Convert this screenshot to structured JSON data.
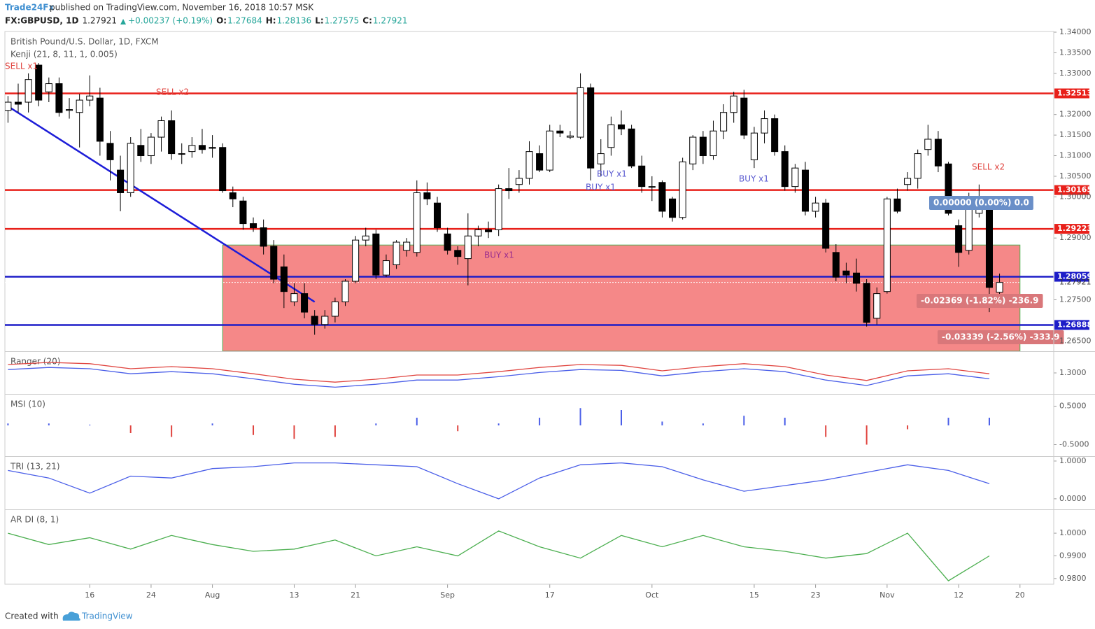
{
  "header": {
    "author": "Trade24Fx",
    "published": "published on TradingView.com, November 16, 2018 10:57 MSK"
  },
  "quote": {
    "symbol": "FX:GBPUSD, 1D",
    "last": "1.27921",
    "change": "+0.00237 (+0.19%)",
    "open_label": "O:",
    "open": "1.27684",
    "high_label": "H:",
    "high": "1.28136",
    "low_label": "L:",
    "low": "1.27575",
    "close_label": "C:",
    "close": "1.27921"
  },
  "footer": {
    "created": "Created with",
    "brand": "TradingView"
  },
  "chart_data": {
    "type": "candlestick",
    "title": "British Pound/U.S. Dollar, 1D, FXCM",
    "subtitle": "Kenji (21, 8, 11, 1, 0.005)",
    "up_color": "#ffffff",
    "down_color": "#000000",
    "ohlc": [
      [
        1.321,
        1.3245,
        1.318,
        1.323
      ],
      [
        1.323,
        1.3275,
        1.3205,
        1.3225
      ],
      [
        1.323,
        1.33,
        1.3205,
        1.3285
      ],
      [
        1.332,
        1.3325,
        1.322,
        1.3235
      ],
      [
        1.3255,
        1.329,
        1.323,
        1.3275
      ],
      [
        1.3275,
        1.329,
        1.3195,
        1.3205
      ],
      [
        1.321,
        1.324,
        1.319,
        1.3212
      ],
      [
        1.3205,
        1.325,
        1.312,
        1.3235
      ],
      [
        1.3235,
        1.3295,
        1.322,
        1.3245
      ],
      [
        1.324,
        1.3265,
        1.31,
        1.3135
      ],
      [
        1.313,
        1.316,
        1.304,
        1.309
      ],
      [
        1.3065,
        1.31,
        1.2965,
        1.301
      ],
      [
        1.301,
        1.3145,
        1.3,
        1.313
      ],
      [
        1.3125,
        1.3165,
        1.3085,
        1.31
      ],
      [
        1.31,
        1.3155,
        1.308,
        1.3145
      ],
      [
        1.3145,
        1.3195,
        1.311,
        1.3185
      ],
      [
        1.3185,
        1.321,
        1.309,
        1.3105
      ],
      [
        1.3105,
        1.313,
        1.308,
        1.3105
      ],
      [
        1.311,
        1.3145,
        1.3095,
        1.3125
      ],
      [
        1.3125,
        1.3165,
        1.3105,
        1.3115
      ],
      [
        1.312,
        1.315,
        1.3095,
        1.3118
      ],
      [
        1.312,
        1.313,
        1.301,
        1.3015
      ],
      [
        1.301,
        1.3025,
        1.2975,
        1.2995
      ],
      [
        1.299,
        1.3,
        1.292,
        1.2935
      ],
      [
        1.2935,
        1.295,
        1.2915,
        1.2925
      ],
      [
        1.2925,
        1.2945,
        1.286,
        1.288
      ],
      [
        1.288,
        1.2895,
        1.279,
        1.28
      ],
      [
        1.283,
        1.286,
        1.273,
        1.277
      ],
      [
        1.2745,
        1.279,
        1.2735,
        1.2765
      ],
      [
        1.2765,
        1.279,
        1.2705,
        1.272
      ],
      [
        1.271,
        1.2725,
        1.2665,
        1.269
      ],
      [
        1.269,
        1.2725,
        1.268,
        1.271
      ],
      [
        1.271,
        1.2755,
        1.2695,
        1.2745
      ],
      [
        1.2745,
        1.28,
        1.2735,
        1.2795
      ],
      [
        1.2795,
        1.2905,
        1.279,
        1.2895
      ],
      [
        1.2895,
        1.2925,
        1.288,
        1.2905
      ],
      [
        1.291,
        1.292,
        1.28,
        1.281
      ],
      [
        1.281,
        1.286,
        1.2805,
        1.2845
      ],
      [
        1.2835,
        1.2895,
        1.2825,
        1.289
      ],
      [
        1.287,
        1.29,
        1.2855,
        1.289
      ],
      [
        1.2865,
        1.304,
        1.2855,
        1.301
      ],
      [
        1.301,
        1.3035,
        1.298,
        1.2995
      ],
      [
        1.2985,
        1.3,
        1.2915,
        1.2925
      ],
      [
        1.291,
        1.2925,
        1.286,
        1.287
      ],
      [
        1.287,
        1.288,
        1.2835,
        1.2855
      ],
      [
        1.285,
        1.296,
        1.2785,
        1.2905
      ],
      [
        1.2905,
        1.293,
        1.288,
        1.292
      ],
      [
        1.292,
        1.294,
        1.29,
        1.2915
      ],
      [
        1.292,
        1.303,
        1.2905,
        1.302
      ],
      [
        1.302,
        1.307,
        1.2995,
        1.3015
      ],
      [
        1.303,
        1.3065,
        1.301,
        1.3045
      ],
      [
        1.3045,
        1.3135,
        1.303,
        1.311
      ],
      [
        1.3105,
        1.3125,
        1.306,
        1.3065
      ],
      [
        1.3065,
        1.3175,
        1.306,
        1.316
      ],
      [
        1.316,
        1.3175,
        1.3145,
        1.3155
      ],
      [
        1.3145,
        1.316,
        1.314,
        1.3148
      ],
      [
        1.3145,
        1.33,
        1.314,
        1.3265
      ],
      [
        1.3265,
        1.3275,
        1.304,
        1.307
      ],
      [
        1.308,
        1.314,
        1.305,
        1.3105
      ],
      [
        1.312,
        1.3195,
        1.31,
        1.3175
      ],
      [
        1.3175,
        1.321,
        1.315,
        1.3165
      ],
      [
        1.3165,
        1.3175,
        1.307,
        1.3075
      ],
      [
        1.3075,
        1.31,
        1.301,
        1.3025
      ],
      [
        1.3025,
        1.305,
        1.299,
        1.3025
      ],
      [
        1.3035,
        1.304,
        1.295,
        1.2965
      ],
      [
        1.2995,
        1.3,
        1.294,
        1.295
      ],
      [
        1.295,
        1.3095,
        1.2945,
        1.3085
      ],
      [
        1.308,
        1.315,
        1.3065,
        1.3145
      ],
      [
        1.3145,
        1.316,
        1.308,
        1.31
      ],
      [
        1.31,
        1.3185,
        1.309,
        1.316
      ],
      [
        1.316,
        1.3225,
        1.314,
        1.3205
      ],
      [
        1.3205,
        1.3255,
        1.318,
        1.3245
      ],
      [
        1.324,
        1.326,
        1.314,
        1.315
      ],
      [
        1.309,
        1.317,
        1.307,
        1.3155
      ],
      [
        1.3155,
        1.321,
        1.313,
        1.319
      ],
      [
        1.319,
        1.32,
        1.31,
        1.311
      ],
      [
        1.311,
        1.3125,
        1.3015,
        1.3025
      ],
      [
        1.3025,
        1.308,
        1.301,
        1.307
      ],
      [
        1.3065,
        1.3085,
        1.2955,
        1.2965
      ],
      [
        1.2965,
        1.3,
        1.295,
        1.2985
      ],
      [
        1.2985,
        1.2995,
        1.2865,
        1.2875
      ],
      [
        1.2865,
        1.2885,
        1.2795,
        1.2805
      ],
      [
        1.282,
        1.284,
        1.279,
        1.281
      ],
      [
        1.2815,
        1.285,
        1.277,
        1.279
      ],
      [
        1.279,
        1.28,
        1.2685,
        1.2695
      ],
      [
        1.2705,
        1.278,
        1.269,
        1.2765
      ],
      [
        1.277,
        1.3,
        1.2765,
        1.2995
      ],
      [
        1.2995,
        1.302,
        1.296,
        1.2965
      ],
      [
        1.303,
        1.306,
        1.3015,
        1.3045
      ],
      [
        1.3045,
        1.3115,
        1.302,
        1.3105
      ],
      [
        1.3115,
        1.3175,
        1.31,
        1.314
      ],
      [
        1.314,
        1.316,
        1.306,
        1.3075
      ],
      [
        1.308,
        1.3085,
        1.2955,
        1.296
      ],
      [
        1.293,
        1.2945,
        1.283,
        1.2865
      ],
      [
        1.287,
        1.301,
        1.286,
        1.2985
      ],
      [
        1.296,
        1.303,
        1.295,
        1.298
      ],
      [
        1.2985,
        1.3,
        1.272,
        1.278
      ],
      [
        1.27684,
        1.28136,
        1.27575,
        1.27921
      ]
    ],
    "xlim": [
      -0.3,
      102.3
    ],
    "xticks": [
      {
        "value": 8,
        "label": "16"
      },
      {
        "value": 14,
        "label": "24"
      },
      {
        "value": 20,
        "label": "Aug"
      },
      {
        "value": 28,
        "label": "13"
      },
      {
        "value": 34,
        "label": "21"
      },
      {
        "value": 43,
        "label": "Sep"
      },
      {
        "value": 53,
        "label": "17"
      },
      {
        "value": 63,
        "label": "Oct"
      },
      {
        "value": 73,
        "label": "15"
      },
      {
        "value": 79,
        "label": "23"
      },
      {
        "value": 86,
        "label": "Nov"
      },
      {
        "value": 93,
        "label": "12"
      },
      {
        "value": 99,
        "label": "20"
      }
    ],
    "ylim": [
      1.2625,
      1.34
    ],
    "yticks": [
      {
        "value": 1.34,
        "label": "1.34000"
      },
      {
        "value": 1.335,
        "label": "1.33500"
      },
      {
        "value": 1.33,
        "label": "1.33000"
      },
      {
        "value": 1.32,
        "label": "1.32000"
      },
      {
        "value": 1.315,
        "label": "1.31500"
      },
      {
        "value": 1.31,
        "label": "1.31000"
      },
      {
        "value": 1.305,
        "label": "1.30500"
      },
      {
        "value": 1.3,
        "label": "1.30000"
      },
      {
        "value": 1.29,
        "label": "1.29000"
      },
      {
        "value": 1.275,
        "label": "1.27500"
      },
      {
        "value": 1.265,
        "label": "1.26500"
      }
    ],
    "grid": false,
    "levels": [
      {
        "value": 1.32513,
        "color": "#e8201a"
      },
      {
        "value": 1.30165,
        "color": "#e8201a"
      },
      {
        "value": 1.29223,
        "color": "#e8201a"
      },
      {
        "value": 1.28059,
        "color": "#1d1dc8"
      },
      {
        "value": 1.26888,
        "color": "#1d1dc8"
      }
    ],
    "last_price": 1.27921,
    "zone": {
      "x": [
        21,
        99
      ],
      "y": [
        1.2883,
        1.2625
      ],
      "color": "#f26060"
    },
    "trendline": {
      "x": [
        0,
        30
      ],
      "y": [
        1.322,
        1.2745
      ],
      "color": "#1d1dd8"
    },
    "annotations": [
      {
        "text": "SELL x1",
        "color": "#e0443f"
      },
      {
        "text": "SELL x2",
        "color": "#e0443f"
      },
      {
        "text": "BUY x1",
        "color": "#5a5ad0"
      },
      {
        "text": "BUY x1",
        "color": "#5a5ad0"
      },
      {
        "text": "BUY x1",
        "color": "#5a5ad0"
      },
      {
        "text": "BUY x1",
        "color": "#9c2f8e"
      },
      {
        "text": "SELL x2",
        "color": "#e0443f"
      }
    ],
    "boxes": [
      {
        "text": "0.00000 (0.00%) 0.0",
        "color": "#6a8fc8"
      },
      {
        "text": "-0.02369 (-1.82%) -236.9",
        "color": "#d9777a"
      },
      {
        "text": "-0.03339 (-2.56%) -333.9",
        "color": "#d9777a"
      }
    ],
    "panes": [
      {
        "title": "Ranger (20)",
        "kind": "line",
        "ylim": [
          1.25,
          1.35
        ],
        "yticks": [
          {
            "value": 1.3,
            "label": "1.3000"
          }
        ],
        "x": [
          0,
          4,
          8,
          12,
          16,
          20,
          24,
          28,
          32,
          36,
          40,
          44,
          48,
          52,
          56,
          60,
          64,
          68,
          72,
          76,
          80,
          84,
          88,
          92,
          96
        ],
        "series": [
          {
            "color": "#e0443f",
            "values": [
              1.32,
              1.325,
              1.322,
              1.31,
              1.315,
              1.31,
              1.298,
              1.285,
              1.278,
              1.285,
              1.295,
              1.295,
              1.303,
              1.313,
              1.32,
              1.318,
              1.305,
              1.315,
              1.322,
              1.315,
              1.295,
              1.282,
              1.305,
              1.31,
              1.298
            ]
          },
          {
            "color": "#4a5ee8",
            "values": [
              1.308,
              1.313,
              1.31,
              1.298,
              1.303,
              1.298,
              1.286,
              1.273,
              1.266,
              1.273,
              1.283,
              1.283,
              1.291,
              1.301,
              1.308,
              1.306,
              1.293,
              1.303,
              1.31,
              1.303,
              1.283,
              1.27,
              1.293,
              1.298,
              1.286
            ]
          }
        ]
      },
      {
        "title": "MSI (10)",
        "kind": "bars",
        "ylim": [
          -0.8,
          0.8
        ],
        "yticks": [
          {
            "value": 0.5,
            "label": "0.5000"
          },
          {
            "value": -0.5,
            "label": "-0.5000"
          }
        ],
        "pos_color": "#4a5ee8",
        "neg_color": "#e0443f",
        "x": [
          0,
          4,
          8,
          12,
          16,
          20,
          24,
          28,
          32,
          36,
          40,
          44,
          48,
          52,
          56,
          60,
          64,
          68,
          72,
          76,
          80,
          84,
          88,
          92,
          96
        ],
        "values": [
          0.05,
          0.05,
          0.02,
          -0.2,
          -0.3,
          0.05,
          -0.25,
          -0.35,
          -0.3,
          0.05,
          0.2,
          -0.15,
          0.05,
          0.2,
          0.45,
          0.4,
          0.1,
          0.05,
          0.25,
          0.2,
          -0.3,
          -0.5,
          -0.1,
          0.2,
          0.2
        ]
      },
      {
        "title": "TRI (13, 21)",
        "kind": "line",
        "ylim": [
          -0.28,
          1.11
        ],
        "yticks": [
          {
            "value": 1,
            "label": "1.0000"
          },
          {
            "value": 0,
            "label": "0.0000"
          }
        ],
        "x": [
          0,
          4,
          8,
          12,
          16,
          20,
          24,
          28,
          32,
          36,
          40,
          44,
          48,
          52,
          56,
          60,
          64,
          68,
          72,
          76,
          80,
          84,
          88,
          92,
          96
        ],
        "series": [
          {
            "color": "#4a5ee8",
            "values": [
              0.75,
              0.55,
              0.15,
              0.6,
              0.55,
              0.8,
              0.85,
              0.95,
              0.95,
              0.9,
              0.85,
              0.4,
              0.0,
              0.55,
              0.9,
              0.95,
              0.85,
              0.5,
              0.2,
              0.35,
              0.5,
              0.7,
              0.9,
              0.75,
              0.4
            ]
          }
        ]
      },
      {
        "title": "AR DI (8, 1)",
        "kind": "line",
        "ylim": [
          0.9775,
          1.0102
        ],
        "yticks": [
          {
            "value": 1,
            "label": "1.0000"
          },
          {
            "value": 0.99,
            "label": "0.9900"
          },
          {
            "value": 0.98,
            "label": "0.9800"
          }
        ],
        "x": [
          0,
          4,
          8,
          12,
          16,
          20,
          24,
          28,
          32,
          36,
          40,
          44,
          48,
          52,
          56,
          60,
          64,
          68,
          72,
          76,
          80,
          84,
          88,
          92,
          96
        ],
        "series": [
          {
            "color": "#4caf50",
            "values": [
              1.0,
              0.995,
              0.998,
              0.993,
              0.999,
              0.995,
              0.992,
              0.993,
              0.997,
              0.99,
              0.994,
              0.99,
              1.001,
              0.994,
              0.989,
              0.999,
              0.994,
              0.999,
              0.994,
              0.992,
              0.989,
              0.991,
              1.0,
              0.979,
              0.99
            ]
          }
        ]
      }
    ]
  }
}
